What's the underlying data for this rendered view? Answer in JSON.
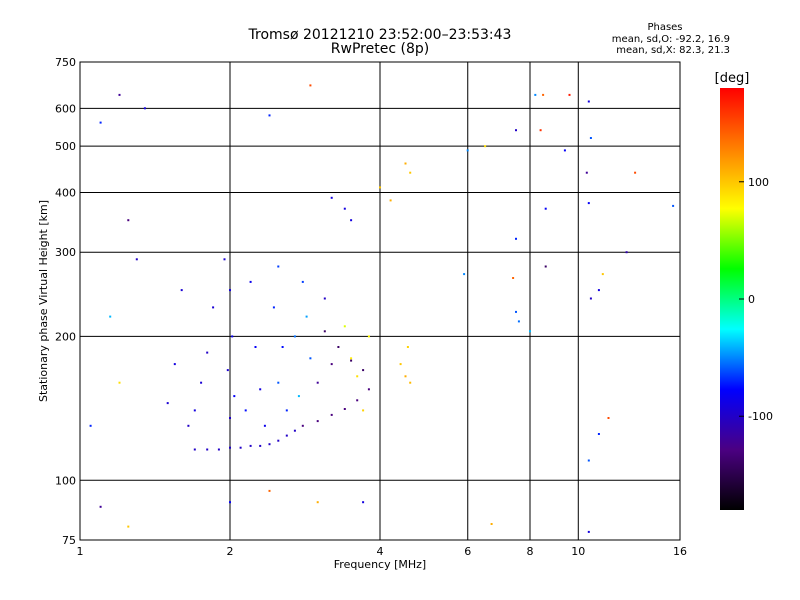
{
  "header": {
    "title_line1": "Tromsø 20121210 23:52:00–23:53:43",
    "title_line2": "RwPretec (8p)",
    "stats_title": "Phases",
    "stats_o": "mean, sd,O: -92.2, 16.9",
    "stats_x": "mean, sd,X:  82.3, 21.3"
  },
  "colors": {
    "background": "#ffffff",
    "frame": "#000000",
    "colorbar_stops": [
      "#000000",
      "#4b0082",
      "#0000ff",
      "#00ffff",
      "#00ff00",
      "#ffff00",
      "#ff8000",
      "#ff0000"
    ]
  },
  "chart_data": {
    "type": "scatter",
    "title": "Tromsø 20121210 23:52:00–23:53:43",
    "subtitle": "RwPretec (8p)",
    "xlabel": "Frequency [MHz]",
    "ylabel": "Stationary phase Virtual Height [km]",
    "x_scale": "log",
    "y_scale": "log",
    "xlim": [
      1,
      16
    ],
    "ylim": [
      75,
      750
    ],
    "x_ticks": [
      1,
      2,
      4,
      6,
      8,
      10,
      16
    ],
    "x_tick_labels": [
      "1",
      "2",
      "4",
      "6",
      "8",
      "10",
      "16"
    ],
    "y_ticks": [
      75,
      100,
      200,
      300,
      400,
      500,
      600,
      750
    ],
    "y_tick_labels": [
      "75",
      "100",
      "200",
      "300",
      "400",
      "500",
      "600",
      "750"
    ],
    "grid": true,
    "colorbar": {
      "label": "[deg]",
      "range": [
        -180,
        180
      ],
      "tick_values": [
        100,
        0,
        -100
      ],
      "tick_labels": [
        "100",
        "0",
        "-100"
      ]
    },
    "traces": [
      {
        "name": "",
        "x": [
          1.7,
          1.8,
          1.9,
          2.0,
          2.1,
          2.2,
          2.3,
          2.4,
          2.5,
          2.6,
          2.7
        ],
        "y": [
          116,
          116,
          116,
          117,
          117,
          118,
          118,
          119,
          121,
          124,
          127
        ],
        "phase": -100
      },
      {
        "name": "",
        "x": [
          2.8,
          3.0,
          3.2,
          3.4,
          3.6,
          3.8
        ],
        "y": [
          130,
          133,
          137,
          141,
          147,
          155
        ],
        "phase": -130
      },
      {
        "name": "",
        "x": [
          3.1,
          3.3,
          3.5,
          3.7
        ],
        "y": [
          205,
          190,
          178,
          170
        ],
        "phase": -140
      },
      {
        "name": "",
        "x": [
          3.2,
          3.4,
          3.5
        ],
        "y": [
          390,
          370,
          350
        ],
        "phase": -90
      }
    ],
    "points": [
      {
        "x": 1.95,
        "y": 290,
        "phase": -95
      },
      {
        "x": 2.0,
        "y": 250,
        "phase": -90
      },
      {
        "x": 2.02,
        "y": 200,
        "phase": -85
      },
      {
        "x": 1.98,
        "y": 170,
        "phase": -95
      },
      {
        "x": 2.04,
        "y": 150,
        "phase": -80
      },
      {
        "x": 2.0,
        "y": 135,
        "phase": -100
      },
      {
        "x": 1.85,
        "y": 230,
        "phase": -95
      },
      {
        "x": 1.8,
        "y": 185,
        "phase": -100
      },
      {
        "x": 1.75,
        "y": 160,
        "phase": -95
      },
      {
        "x": 1.7,
        "y": 140,
        "phase": -90
      },
      {
        "x": 1.65,
        "y": 130,
        "phase": -100
      },
      {
        "x": 1.6,
        "y": 250,
        "phase": -95
      },
      {
        "x": 1.55,
        "y": 175,
        "phase": -90
      },
      {
        "x": 1.5,
        "y": 145,
        "phase": -95
      },
      {
        "x": 2.2,
        "y": 260,
        "phase": -85
      },
      {
        "x": 2.25,
        "y": 190,
        "phase": -80
      },
      {
        "x": 2.3,
        "y": 155,
        "phase": -90
      },
      {
        "x": 2.15,
        "y": 140,
        "phase": -75
      },
      {
        "x": 2.35,
        "y": 130,
        "phase": -85
      },
      {
        "x": 2.5,
        "y": 280,
        "phase": -65
      },
      {
        "x": 2.45,
        "y": 230,
        "phase": -70
      },
      {
        "x": 2.55,
        "y": 190,
        "phase": -75
      },
      {
        "x": 2.5,
        "y": 160,
        "phase": -60
      },
      {
        "x": 2.6,
        "y": 140,
        "phase": -70
      },
      {
        "x": 2.7,
        "y": 200,
        "phase": -55
      },
      {
        "x": 2.8,
        "y": 260,
        "phase": -65
      },
      {
        "x": 2.85,
        "y": 220,
        "phase": -45
      },
      {
        "x": 2.9,
        "y": 180,
        "phase": -60
      },
      {
        "x": 2.75,
        "y": 150,
        "phase": -40
      },
      {
        "x": 3.0,
        "y": 160,
        "phase": -120
      },
      {
        "x": 3.1,
        "y": 240,
        "phase": -100
      },
      {
        "x": 3.2,
        "y": 175,
        "phase": -130
      },
      {
        "x": 3.4,
        "y": 210,
        "phase": 70
      },
      {
        "x": 3.5,
        "y": 180,
        "phase": 85
      },
      {
        "x": 3.6,
        "y": 165,
        "phase": 90
      },
      {
        "x": 3.7,
        "y": 140,
        "phase": 95
      },
      {
        "x": 3.8,
        "y": 200,
        "phase": 80
      },
      {
        "x": 4.4,
        "y": 175,
        "phase": 100
      },
      {
        "x": 4.5,
        "y": 165,
        "phase": 110
      },
      {
        "x": 4.6,
        "y": 160,
        "phase": 105
      },
      {
        "x": 4.55,
        "y": 190,
        "phase": 95
      },
      {
        "x": 4.5,
        "y": 460,
        "phase": 110
      },
      {
        "x": 4.6,
        "y": 440,
        "phase": 100
      },
      {
        "x": 2.9,
        "y": 670,
        "phase": 150
      },
      {
        "x": 2.4,
        "y": 580,
        "phase": -70
      },
      {
        "x": 1.2,
        "y": 640,
        "phase": -120
      },
      {
        "x": 1.35,
        "y": 600,
        "phase": -90
      },
      {
        "x": 1.1,
        "y": 560,
        "phase": -70
      },
      {
        "x": 1.25,
        "y": 350,
        "phase": -130
      },
      {
        "x": 1.3,
        "y": 290,
        "phase": -100
      },
      {
        "x": 1.15,
        "y": 220,
        "phase": -40
      },
      {
        "x": 1.05,
        "y": 130,
        "phase": -70
      },
      {
        "x": 1.2,
        "y": 160,
        "phase": 90
      },
      {
        "x": 1.25,
        "y": 80,
        "phase": 100
      },
      {
        "x": 1.1,
        "y": 88,
        "phase": -120
      },
      {
        "x": 2.0,
        "y": 90,
        "phase": -80
      },
      {
        "x": 2.4,
        "y": 95,
        "phase": 140
      },
      {
        "x": 3.0,
        "y": 90,
        "phase": 110
      },
      {
        "x": 3.7,
        "y": 90,
        "phase": -90
      },
      {
        "x": 6.0,
        "y": 490,
        "phase": -50
      },
      {
        "x": 6.5,
        "y": 500,
        "phase": 90
      },
      {
        "x": 5.9,
        "y": 270,
        "phase": -50
      },
      {
        "x": 7.5,
        "y": 540,
        "phase": -100
      },
      {
        "x": 7.5,
        "y": 320,
        "phase": -70
      },
      {
        "x": 7.4,
        "y": 265,
        "phase": 140
      },
      {
        "x": 7.5,
        "y": 225,
        "phase": -60
      },
      {
        "x": 7.6,
        "y": 215,
        "phase": -55
      },
      {
        "x": 8.0,
        "y": 205,
        "phase": -40
      },
      {
        "x": 8.2,
        "y": 640,
        "phase": -50
      },
      {
        "x": 8.5,
        "y": 640,
        "phase": 140
      },
      {
        "x": 9.6,
        "y": 640,
        "phase": 170
      },
      {
        "x": 8.4,
        "y": 540,
        "phase": 160
      },
      {
        "x": 8.6,
        "y": 370,
        "phase": -80
      },
      {
        "x": 8.6,
        "y": 280,
        "phase": -140
      },
      {
        "x": 9.4,
        "y": 490,
        "phase": -80
      },
      {
        "x": 10.5,
        "y": 620,
        "phase": -90
      },
      {
        "x": 10.6,
        "y": 520,
        "phase": -60
      },
      {
        "x": 10.4,
        "y": 440,
        "phase": -120
      },
      {
        "x": 10.5,
        "y": 380,
        "phase": -80
      },
      {
        "x": 10.6,
        "y": 240,
        "phase": -100
      },
      {
        "x": 11.0,
        "y": 250,
        "phase": -90
      },
      {
        "x": 11.2,
        "y": 270,
        "phase": 100
      },
      {
        "x": 11.5,
        "y": 135,
        "phase": 150
      },
      {
        "x": 11.0,
        "y": 125,
        "phase": -70
      },
      {
        "x": 10.5,
        "y": 110,
        "phase": -60
      },
      {
        "x": 10.5,
        "y": 78,
        "phase": -90
      },
      {
        "x": 12.5,
        "y": 300,
        "phase": -110
      },
      {
        "x": 13.0,
        "y": 440,
        "phase": 150
      },
      {
        "x": 15.5,
        "y": 375,
        "phase": -60
      },
      {
        "x": 6.7,
        "y": 81,
        "phase": 110
      },
      {
        "x": 4.0,
        "y": 410,
        "phase": 100
      },
      {
        "x": 4.2,
        "y": 385,
        "phase": 110
      }
    ]
  }
}
